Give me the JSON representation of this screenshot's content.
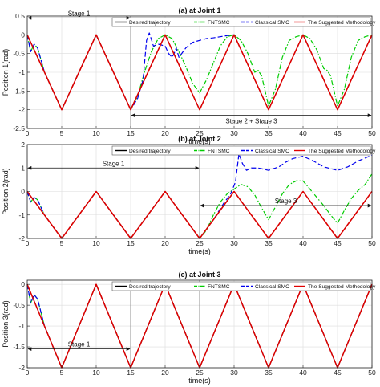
{
  "chart_data": [
    {
      "type": "line",
      "title": "(a) at Joint 1",
      "xlabel": "time(s)",
      "ylabel": "Position 1(rad)",
      "xlim": [
        0,
        50
      ],
      "ylim": [
        -2.5,
        0.5
      ],
      "xticks": [
        "0",
        "5",
        "10",
        "15",
        "20",
        "25",
        "30",
        "35",
        "40",
        "45",
        "50"
      ],
      "yticks": [
        "0.5",
        "0",
        "-0.5",
        "-1",
        "-1.5",
        "-2",
        "-2.5"
      ],
      "grid": true,
      "legend_position": "top",
      "legend": [
        "Desired trajectory",
        "FNTSMC",
        "Classical SMC",
        "The Suggested Methodology"
      ],
      "series": [
        {
          "name": "Desired trajectory",
          "color": "#000000",
          "style": "solid",
          "x": [
            0,
            2.5,
            5,
            7.5,
            10,
            12.5,
            15,
            17.5,
            20,
            22.5,
            25,
            27.5,
            30,
            32.5,
            35,
            37.5,
            40,
            42.5,
            45,
            47.5,
            50
          ],
          "y": [
            0,
            -1,
            -2,
            -1,
            0,
            -1,
            -2,
            -1,
            0,
            -1,
            -2,
            -1,
            0,
            -1,
            -2,
            -1,
            0,
            -1,
            -2,
            -1,
            0
          ]
        },
        {
          "name": "FNTSMC",
          "color": "#00cc00",
          "style": "dashdot",
          "x": [
            0,
            0.5,
            1,
            1.5,
            2.5,
            5,
            10,
            15,
            16,
            17,
            18,
            19,
            20,
            21,
            22,
            23,
            24,
            25,
            26,
            27,
            28,
            29,
            30,
            31,
            32,
            33,
            33.5,
            34,
            35,
            36,
            37,
            38,
            39,
            40,
            41,
            42,
            43,
            43.5,
            44,
            45,
            46,
            47,
            48,
            49,
            50
          ],
          "y": [
            0,
            -0.45,
            -0.25,
            -0.35,
            -1,
            -2,
            0,
            -2,
            -1.65,
            -1.0,
            -0.45,
            -0.1,
            0,
            -0.1,
            -0.45,
            -0.85,
            -1.3,
            -1.55,
            -1.2,
            -0.75,
            -0.3,
            -0.05,
            0,
            -0.15,
            -0.5,
            -1.0,
            -0.95,
            -1.1,
            -1.9,
            -1.45,
            -0.6,
            -0.15,
            -0.05,
            0,
            -0.1,
            -0.4,
            -0.9,
            -0.95,
            -1.1,
            -1.9,
            -1.45,
            -0.6,
            -0.15,
            -0.05,
            0
          ]
        },
        {
          "name": "Classical SMC",
          "color": "#0000ee",
          "style": "dashed",
          "x": [
            0,
            0.5,
            1,
            1.5,
            2.5,
            5,
            10,
            15,
            16,
            16.8,
            17.3,
            17.7,
            18.3,
            19,
            20,
            20.5,
            21,
            21.3,
            21.6,
            22,
            23,
            24,
            25,
            26,
            27,
            28,
            29,
            30
          ],
          "y": [
            0,
            -0.45,
            -0.25,
            -0.35,
            -1,
            -2,
            0,
            -2,
            -1.7,
            -1.2,
            -0.15,
            0.05,
            -0.3,
            -0.25,
            -0.3,
            -0.5,
            -0.6,
            -0.5,
            -0.35,
            -0.6,
            -0.35,
            -0.2,
            -0.15,
            -0.1,
            -0.08,
            -0.05,
            -0.02,
            0
          ]
        },
        {
          "name": "The Suggested Methodology",
          "color": "#e00000",
          "style": "solid",
          "x": [
            0,
            2.5,
            5,
            7.5,
            10,
            12.5,
            15,
            17.5,
            20,
            22.5,
            25,
            27.5,
            30,
            32.5,
            35,
            37.5,
            40,
            42.5,
            45,
            47.5,
            50
          ],
          "y": [
            0,
            -1,
            -2,
            -1,
            0,
            -1,
            -2,
            -1,
            0,
            -1,
            -2,
            -1,
            0,
            -1,
            -2,
            -1,
            0,
            -1,
            -2,
            -1,
            0
          ]
        }
      ],
      "annotations": [
        {
          "text": "Stage 1",
          "x_start": 0,
          "x_end": 15,
          "y": 0.45
        },
        {
          "text": "Stage 2 + Stage 3",
          "x_start": 15,
          "x_end": 50,
          "y": -2.15
        }
      ],
      "vlines": [
        15
      ]
    },
    {
      "type": "line",
      "title": "(b) at Joint 2",
      "xlabel": "time(s)",
      "ylabel": "Position 2(rad)",
      "xlim": [
        0,
        50
      ],
      "ylim": [
        -2,
        2
      ],
      "xticks": [
        "0",
        "5",
        "10",
        "15",
        "20",
        "25",
        "30",
        "35",
        "40",
        "45",
        "50"
      ],
      "yticks": [
        "2",
        "1",
        "0",
        "-1",
        "-2"
      ],
      "grid": true,
      "legend_position": "top",
      "legend": [
        "Desired trajectory",
        "FNTSMC",
        "Classical SMC",
        "The Suggested Methodology"
      ],
      "series": [
        {
          "name": "Desired trajectory",
          "color": "#000000",
          "style": "solid",
          "x": [
            0,
            2.5,
            5,
            7.5,
            10,
            12.5,
            15,
            17.5,
            20,
            22.5,
            25,
            27.5,
            30,
            32.5,
            35,
            37.5,
            40,
            42.5,
            45,
            47.5,
            50
          ],
          "y": [
            0,
            -1,
            -2,
            -1,
            0,
            -1,
            -2,
            -1,
            0,
            -1,
            -2,
            -1,
            0,
            -1,
            -2,
            -1,
            0,
            -1,
            -2,
            -1,
            0
          ]
        },
        {
          "name": "FNTSMC",
          "color": "#00cc00",
          "style": "dashdot",
          "x": [
            0,
            0.5,
            1,
            1.5,
            2.5,
            5,
            10,
            15,
            20,
            25,
            26,
            27,
            28,
            29,
            30,
            31,
            32,
            33,
            34,
            35,
            36,
            37,
            38,
            39,
            40,
            41,
            42,
            43,
            44,
            45,
            46,
            47,
            48,
            49,
            50
          ],
          "y": [
            0,
            -0.45,
            -0.25,
            -0.35,
            -1,
            -2,
            0,
            -2,
            0,
            -2,
            -1.65,
            -1.0,
            -0.45,
            -0.1,
            0.1,
            0.3,
            0.2,
            -0.15,
            -0.7,
            -1.2,
            -0.65,
            -0.1,
            0.3,
            0.45,
            0.45,
            0.1,
            -0.25,
            -0.6,
            -1.0,
            -1.35,
            -0.8,
            -0.3,
            0.05,
            0.3,
            0.75
          ]
        },
        {
          "name": "Classical SMC",
          "color": "#0000ee",
          "style": "dashed",
          "x": [
            0,
            0.5,
            1,
            1.5,
            2.5,
            5,
            10,
            15,
            20,
            25,
            27,
            28.5,
            29.5,
            30.2,
            30.7,
            31.2,
            31.8,
            32.5,
            33.5,
            35,
            36.5,
            37.5,
            38.5,
            40,
            41.5,
            43,
            45,
            46.5,
            48,
            50
          ],
          "y": [
            0,
            -0.45,
            -0.25,
            -0.35,
            -1,
            -2,
            0,
            -2,
            0,
            -2,
            -1.2,
            -0.5,
            -0.1,
            0.4,
            1.6,
            1.2,
            0.9,
            1.0,
            1.0,
            0.9,
            1.05,
            1.25,
            1.4,
            1.5,
            1.3,
            1.05,
            0.9,
            1.05,
            1.3,
            1.55
          ]
        },
        {
          "name": "The Suggested Methodology",
          "color": "#e00000",
          "style": "solid",
          "x": [
            0,
            2.5,
            5,
            7.5,
            10,
            12.5,
            15,
            17.5,
            20,
            22.5,
            25,
            27.5,
            30,
            32.5,
            35,
            37.5,
            40,
            42.5,
            45,
            47.5,
            50
          ],
          "y": [
            0,
            -1,
            -2,
            -1,
            0,
            -1,
            -2,
            -1,
            0,
            -1,
            -2,
            -1,
            0,
            -1,
            -2,
            -1,
            0,
            -1,
            -2,
            -1,
            0
          ]
        }
      ],
      "annotations": [
        {
          "text": "Stage 1",
          "x_start": 0,
          "x_end": 25,
          "y": 1.0
        },
        {
          "text": "Stage 3",
          "x_start": 25,
          "x_end": 50,
          "y": -0.6
        }
      ],
      "vlines": [
        25
      ]
    },
    {
      "type": "line",
      "title": "(c) at Joint 3",
      "xlabel": "time(s)",
      "ylabel": "Position 3(rad)",
      "xlim": [
        0,
        50
      ],
      "ylim": [
        -2,
        0.1
      ],
      "xticks": [
        "0",
        "5",
        "10",
        "15",
        "20",
        "25",
        "30",
        "35",
        "40",
        "45",
        "50"
      ],
      "yticks": [
        "0",
        "-0.5",
        "-1",
        "-1.5",
        "-2"
      ],
      "grid": true,
      "legend_position": "top",
      "legend": [
        "Desired trajectory",
        "FNTSMC",
        "Classical SMC",
        "The Suggested Methodology"
      ],
      "series": [
        {
          "name": "Desired trajectory",
          "color": "#000000",
          "style": "solid",
          "x": [
            0,
            2.5,
            5,
            7.5,
            10,
            12.5,
            15,
            17.5,
            20,
            22.5,
            25,
            27.5,
            30,
            32.5,
            35,
            37.5,
            40,
            42.5,
            45,
            47.5,
            50
          ],
          "y": [
            0,
            -1,
            -2,
            -1,
            0,
            -1,
            -2,
            -1,
            0,
            -1,
            -2,
            -1,
            0,
            -1,
            -2,
            -1,
            0,
            -1,
            -2,
            -1,
            0
          ]
        },
        {
          "name": "FNTSMC",
          "color": "#00cc00",
          "style": "dashdot",
          "x": [
            0,
            0.5,
            1,
            1.5,
            2.5,
            5,
            7.5,
            10,
            12.5,
            15,
            17.5,
            20,
            22.5,
            25,
            27.5,
            30,
            32.5,
            35,
            37.5,
            40,
            42.5,
            45,
            47.5,
            50
          ],
          "y": [
            0,
            -0.45,
            -0.25,
            -0.35,
            -1,
            -2,
            -1,
            0,
            -1,
            -2,
            -1,
            0,
            -1,
            -2,
            -1,
            0,
            -1,
            -2,
            -1,
            0,
            -1,
            -2,
            -1,
            0
          ]
        },
        {
          "name": "Classical SMC",
          "color": "#0000ee",
          "style": "dashed",
          "x": [
            0,
            0.5,
            1,
            1.5,
            2.5,
            5,
            7.5,
            10,
            12.5,
            15,
            17.5,
            20,
            22.5,
            25,
            27.5,
            30,
            32.5,
            35,
            37.5,
            40,
            42.5,
            45,
            47.5,
            50
          ],
          "y": [
            0,
            -0.45,
            -0.25,
            -0.35,
            -1,
            -2,
            -1,
            0,
            -1,
            -2,
            -1,
            0,
            -1,
            -2,
            -1,
            0,
            -1,
            -2,
            -1,
            0,
            -1,
            -2,
            -1,
            0
          ]
        },
        {
          "name": "The Suggested Methodology",
          "color": "#e00000",
          "style": "solid",
          "x": [
            0,
            2.5,
            5,
            7.5,
            10,
            12.5,
            15,
            17.5,
            20,
            22.5,
            25,
            27.5,
            30,
            32.5,
            35,
            37.5,
            40,
            42.5,
            45,
            47.5,
            50
          ],
          "y": [
            0,
            -1,
            -2,
            -1,
            0,
            -1,
            -2,
            -1,
            0,
            -1,
            -2,
            -1,
            0,
            -1,
            -2,
            -1,
            0,
            -1,
            -2,
            -1,
            0
          ]
        }
      ],
      "annotations": [
        {
          "text": "Stage 1",
          "x_start": 0,
          "x_end": 15,
          "y": -1.55
        }
      ],
      "vlines": [
        15,
        25
      ]
    }
  ]
}
